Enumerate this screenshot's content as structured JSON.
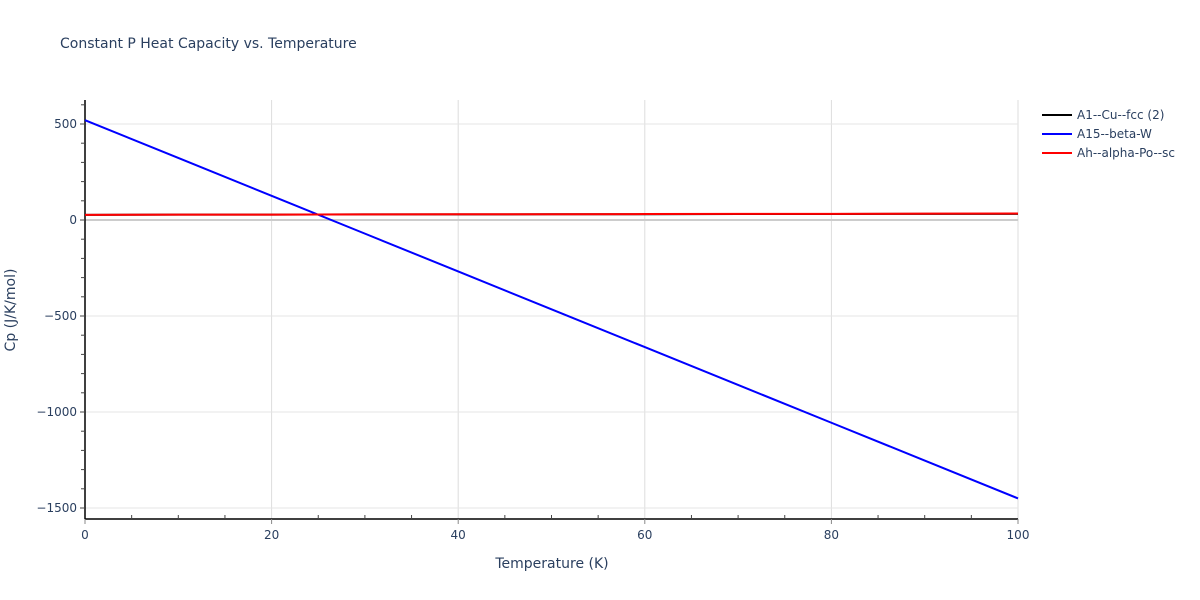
{
  "chart_data": {
    "type": "line",
    "title": "Constant P Heat Capacity vs. Temperature",
    "xlabel": "Temperature (K)",
    "ylabel": "Cp (J/K/mol)",
    "xlim": [
      0,
      100
    ],
    "ylim": [
      -1560,
      620
    ],
    "x_ticks": [
      0,
      20,
      40,
      60,
      80,
      100
    ],
    "y_ticks": [
      500,
      0,
      -500,
      -1000,
      -1500
    ],
    "x_tick_labels": [
      "0",
      "20",
      "40",
      "60",
      "80",
      "100"
    ],
    "y_tick_labels": [
      "500",
      "0",
      "−500",
      "−1000",
      "−1500"
    ],
    "grid": true,
    "legend_position": "right",
    "x": [
      0,
      10,
      20,
      30,
      40,
      50,
      60,
      70,
      80,
      90,
      100
    ],
    "series": [
      {
        "name": "A1--Cu--fcc (2)",
        "color": "#000000",
        "values": [
          27,
          28,
          28,
          29,
          29,
          30,
          30,
          31,
          31,
          32,
          32
        ]
      },
      {
        "name": "A15--beta-W",
        "color": "#0000ff",
        "values": [
          520,
          323,
          126,
          -71,
          -268,
          -465,
          -662,
          -859,
          -1056,
          -1253,
          -1450
        ]
      },
      {
        "name": "Ah--alpha-Po--sc",
        "color": "#ff0000",
        "values": [
          27,
          28,
          28,
          29,
          30,
          30,
          31,
          32,
          32,
          33,
          34
        ]
      }
    ]
  },
  "legend": {
    "items": [
      {
        "label": "A1--Cu--fcc (2)",
        "color": "#000000"
      },
      {
        "label": "A15--beta-W",
        "color": "#0000ff"
      },
      {
        "label": "Ah--alpha-Po--sc",
        "color": "#ff0000"
      }
    ]
  }
}
